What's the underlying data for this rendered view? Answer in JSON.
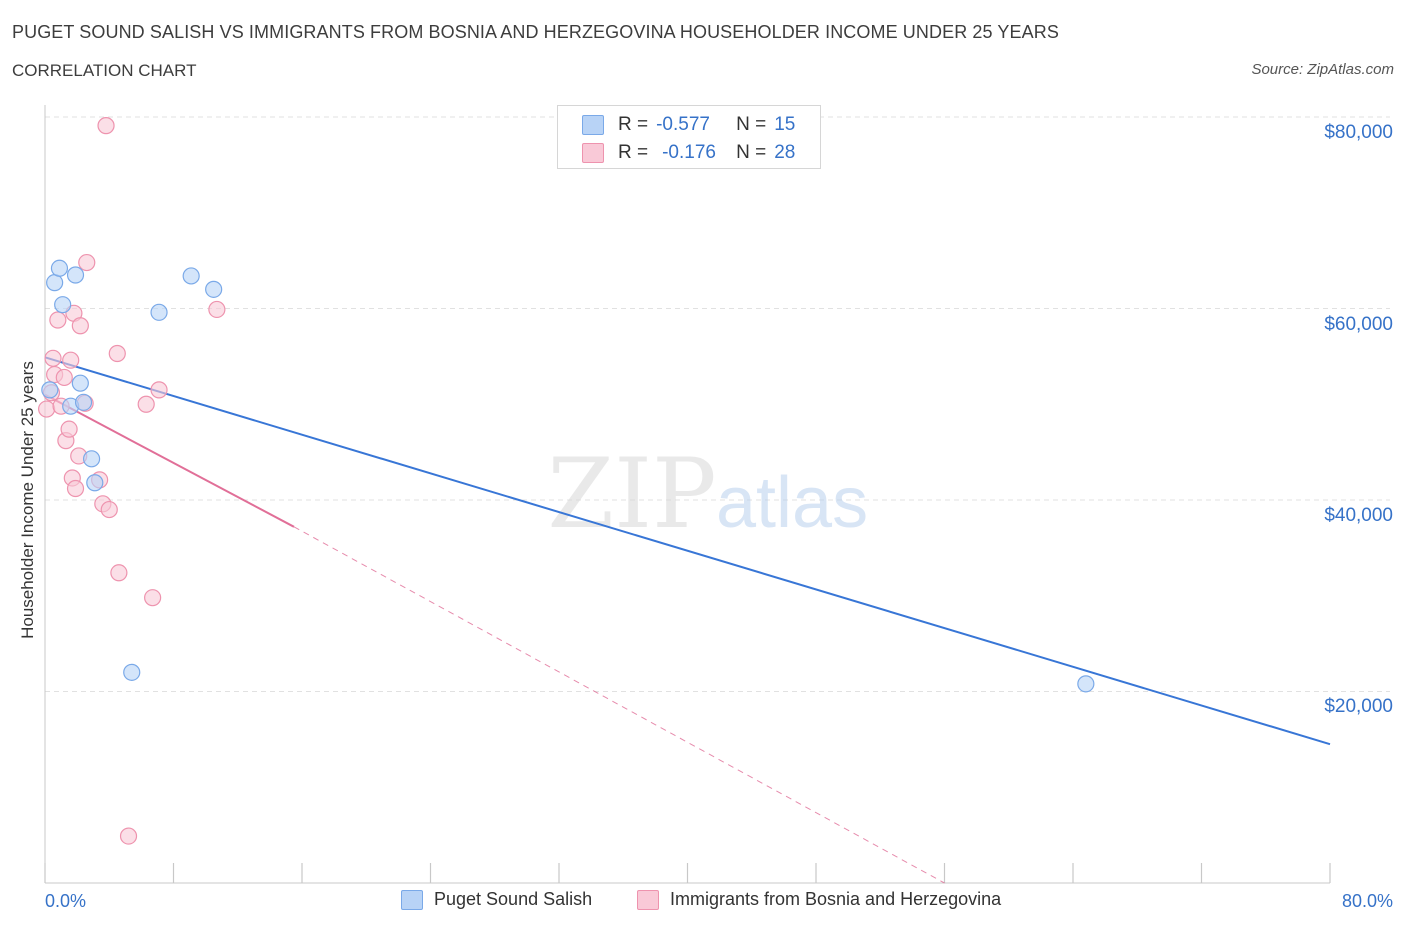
{
  "title": "PUGET SOUND SALISH VS IMMIGRANTS FROM BOSNIA AND HERZEGOVINA HOUSEHOLDER INCOME UNDER 25 YEARS",
  "subtitle": "CORRELATION CHART",
  "source": "Source: ZipAtlas.com",
  "watermark": {
    "zip": "ZIP",
    "atlas": "atlas"
  },
  "legend": {
    "r_label": "R =",
    "n_label": "N =",
    "rows": [
      {
        "r": "-0.577",
        "n": "15"
      },
      {
        "r": "-0.176",
        "n": "28"
      }
    ]
  },
  "colors": {
    "blue_fill": "#b8d3f6",
    "blue_stroke": "#7aa9e8",
    "blue_line": "#3876d6",
    "pink_fill": "#f9c9d7",
    "pink_stroke": "#ee93ae",
    "pink_line": "#e16f98",
    "axis_text": "#3672c8",
    "grid": "#e1e1e1"
  },
  "chart_data": {
    "type": "scatter",
    "title": "PUGET SOUND SALISH VS IMMIGRANTS FROM BOSNIA AND HERZEGOVINA HOUSEHOLDER INCOME UNDER 25 YEARS",
    "xlabel": "",
    "ylabel": "Householder Income Under 25 years",
    "xlim": [
      0,
      80
    ],
    "ylim": [
      0,
      80000
    ],
    "x_tick_labels": [
      "0.0%",
      "80.0%"
    ],
    "y_ticks": [
      20000,
      40000,
      60000,
      80000
    ],
    "y_tick_labels": [
      "$20,000",
      "$40,000",
      "$60,000",
      "$80,000"
    ],
    "grid": true,
    "series": [
      {
        "name": "Puget Sound Salish",
        "color": "blue",
        "points": [
          {
            "x": 0.3,
            "y": 51500
          },
          {
            "x": 0.6,
            "y": 62700
          },
          {
            "x": 0.9,
            "y": 64200
          },
          {
            "x": 1.1,
            "y": 60400
          },
          {
            "x": 1.6,
            "y": 49800
          },
          {
            "x": 1.9,
            "y": 63500
          },
          {
            "x": 2.2,
            "y": 52200
          },
          {
            "x": 2.4,
            "y": 50200
          },
          {
            "x": 2.9,
            "y": 44300
          },
          {
            "x": 3.1,
            "y": 41800
          },
          {
            "x": 5.4,
            "y": 22000
          },
          {
            "x": 7.1,
            "y": 59600
          },
          {
            "x": 9.1,
            "y": 63400
          },
          {
            "x": 10.5,
            "y": 62000
          },
          {
            "x": 64.8,
            "y": 20800
          }
        ],
        "trend": {
          "x1": 0,
          "y1": 54900,
          "x2": 80,
          "y2": 14500,
          "style": "solid"
        }
      },
      {
        "name": "Immigrants from Bosnia and Herzegovina",
        "color": "pink",
        "points": [
          {
            "x": 0.1,
            "y": 49500
          },
          {
            "x": 0.4,
            "y": 51200
          },
          {
            "x": 0.5,
            "y": 54800
          },
          {
            "x": 0.6,
            "y": 53100
          },
          {
            "x": 0.8,
            "y": 58800
          },
          {
            "x": 1.0,
            "y": 49800
          },
          {
            "x": 1.2,
            "y": 52800
          },
          {
            "x": 1.3,
            "y": 46200
          },
          {
            "x": 1.5,
            "y": 47400
          },
          {
            "x": 1.6,
            "y": 54600
          },
          {
            "x": 1.7,
            "y": 42300
          },
          {
            "x": 1.8,
            "y": 59500
          },
          {
            "x": 1.9,
            "y": 41200
          },
          {
            "x": 2.1,
            "y": 44600
          },
          {
            "x": 2.2,
            "y": 58200
          },
          {
            "x": 2.5,
            "y": 50100
          },
          {
            "x": 2.6,
            "y": 64800
          },
          {
            "x": 3.4,
            "y": 42100
          },
          {
            "x": 3.6,
            "y": 39600
          },
          {
            "x": 3.8,
            "y": 79100
          },
          {
            "x": 4.0,
            "y": 39000
          },
          {
            "x": 4.5,
            "y": 55300
          },
          {
            "x": 4.6,
            "y": 32400
          },
          {
            "x": 5.2,
            "y": 4900
          },
          {
            "x": 6.3,
            "y": 50000
          },
          {
            "x": 6.7,
            "y": 29800
          },
          {
            "x": 7.1,
            "y": 51500
          },
          {
            "x": 10.7,
            "y": 59900
          }
        ],
        "trend": {
          "x1": 0,
          "y1": 51000,
          "x2": 15.5,
          "y2": 37200,
          "style": "solid",
          "extension_x2": 56,
          "extension_y2": 0,
          "extension_style": "dashed"
        }
      }
    ],
    "legend_position": "top-center"
  }
}
